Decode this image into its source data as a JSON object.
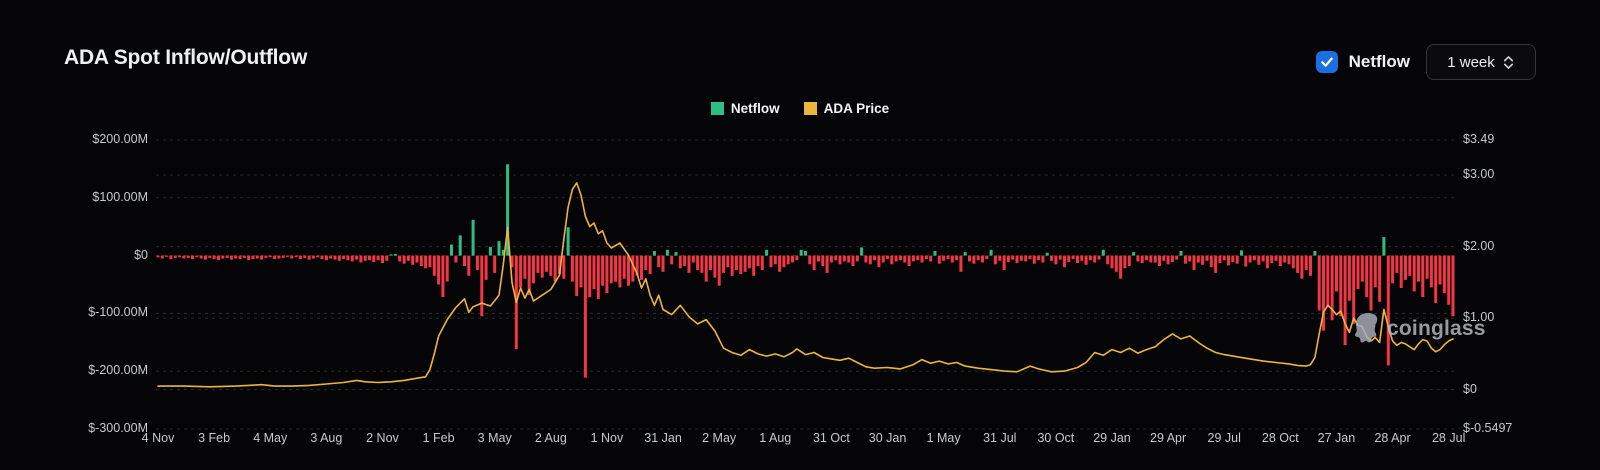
{
  "header": {
    "title": "ADA Spot Inflow/Outflow"
  },
  "controls": {
    "netflow_label": "Netflow",
    "netflow_checked": true,
    "checkbox_color": "#1c6fe2",
    "interval_value": "1 week"
  },
  "legend": [
    {
      "label": "Netflow",
      "color": "#2ebd85"
    },
    {
      "label": "ADA Price",
      "color": "#ecb53c"
    }
  ],
  "watermark": {
    "text": "coinglass"
  },
  "chart_data": {
    "type": "bar+line combo",
    "title": "ADA Spot Inflow/Outflow",
    "grid": "dashed horizontal gridlines, dark theme",
    "x_axis": {
      "tick_labels": [
        "4 Nov",
        "3 Feb",
        "4 May",
        "3 Aug",
        "2 Nov",
        "1 Feb",
        "3 May",
        "2 Aug",
        "1 Nov",
        "31 Jan",
        "2 May",
        "1 Aug",
        "31 Oct",
        "30 Jan",
        "1 May",
        "31 Jul",
        "30 Oct",
        "29 Jan",
        "29 Apr",
        "29 Jul",
        "28 Oct",
        "27 Jan",
        "28 Apr",
        "28 Jul"
      ],
      "weeks_between_ticks": 13,
      "total_weeks": 301
    },
    "left_axis": {
      "tick_labels": [
        "$200.00M",
        "$100.00M",
        "$0",
        "$-100.00M",
        "$-200.00M",
        "$-300.00M"
      ],
      "tick_values": [
        200,
        100,
        0,
        -100,
        -200,
        -300
      ],
      "range": [
        -300,
        200
      ],
      "unit": "$M"
    },
    "right_axis": {
      "tick_labels": [
        "$3.49",
        "$3.00",
        "$2.00",
        "$1.00",
        "$0",
        "$-0.5497"
      ],
      "tick_values": [
        3.49,
        3,
        2,
        1,
        0,
        -0.5497
      ],
      "range": [
        -0.5497,
        3.49
      ],
      "unit": "$"
    },
    "series": [
      {
        "name": "Netflow",
        "type": "bar",
        "axis": "left",
        "unit": "million USD per week",
        "color_positive": "#2ebd85",
        "color_negative": "#f23645",
        "values": [
          -3,
          -5,
          -2,
          -6,
          -4,
          -3,
          -5,
          -4,
          -6,
          -3,
          -5,
          -7,
          -4,
          -6,
          -8,
          -5,
          -4,
          -7,
          -5,
          -6,
          -4,
          -8,
          -6,
          -5,
          -7,
          -4,
          -3,
          -6,
          -5,
          -4,
          -2,
          -5,
          -3,
          -6,
          -4,
          -7,
          -5,
          -3,
          -6,
          -8,
          -5,
          -7,
          -9,
          -6,
          -8,
          -10,
          -7,
          -12,
          -9,
          -8,
          -11,
          -8,
          -13,
          -9,
          2,
          3,
          -10,
          -14,
          -9,
          -16,
          -12,
          -18,
          -22,
          -20,
          -35,
          -50,
          -72,
          -45,
          19,
          -12,
          35,
          -18,
          -35,
          62,
          -25,
          -105,
          -42,
          15,
          -30,
          25,
          10,
          158,
          -20,
          -162,
          -55,
          -40,
          -68,
          -48,
          -30,
          -38,
          -28,
          -35,
          -45,
          -32,
          -40,
          49,
          -45,
          -70,
          -55,
          -211,
          -72,
          -58,
          -75,
          -52,
          -65,
          -48,
          -45,
          -55,
          -40,
          -52,
          -45,
          -35,
          -42,
          -25,
          -32,
          8,
          -20,
          -28,
          10,
          -15,
          6,
          -22,
          -18,
          -30,
          -12,
          -25,
          -30,
          -45,
          -25,
          -38,
          -52,
          -30,
          -20,
          -35,
          -25,
          -32,
          -28,
          -22,
          -35,
          -18,
          -25,
          10,
          -20,
          -15,
          -28,
          -20,
          -15,
          -12,
          -8,
          10,
          8,
          -15,
          -25,
          -10,
          -18,
          -30,
          -12,
          -8,
          -15,
          -10,
          -12,
          -18,
          -10,
          14,
          -12,
          -15,
          -8,
          -20,
          -12,
          -6,
          -15,
          -10,
          -8,
          -12,
          -18,
          -10,
          -8,
          -12,
          -6,
          -10,
          8,
          -14,
          -9,
          -6,
          -12,
          -8,
          -28,
          6,
          -10,
          -14,
          -8,
          -12,
          -6,
          10,
          -15,
          -9,
          -25,
          -11,
          -7,
          -13,
          -9,
          -10,
          -6,
          -14,
          -8,
          -12,
          5,
          -9,
          -15,
          -7,
          -20,
          -11,
          -6,
          -13,
          -9,
          -16,
          -8,
          -12,
          -7,
          10,
          -15,
          -22,
          -28,
          -40,
          -22,
          -18,
          6,
          -10,
          -13,
          -8,
          -12,
          -12,
          -18,
          -9,
          -15,
          -11,
          -7,
          8,
          -14,
          -10,
          -25,
          -12,
          -16,
          -9,
          -20,
          -30,
          -13,
          -8,
          -17,
          -11,
          -14,
          9,
          -19,
          -12,
          -8,
          -16,
          -10,
          -22,
          -13,
          -9,
          -18,
          -12,
          -15,
          -22,
          -30,
          -40,
          -25,
          -35,
          8,
          -95,
          -130,
          -88,
          -112,
          -62,
          -105,
          -155,
          -78,
          -118,
          -58,
          -45,
          -72,
          -95,
          -55,
          -80,
          32,
          -190,
          -48,
          -30,
          -56,
          -42,
          -35,
          -62,
          -45,
          -72,
          -40,
          -55,
          -82,
          -50,
          -65,
          -85,
          -105
        ]
      },
      {
        "name": "ADA Price",
        "type": "line",
        "axis": "right",
        "unit": "USD",
        "color": "#ecb53c",
        "points": [
          [
            0,
            0.05
          ],
          [
            6,
            0.05
          ],
          [
            12,
            0.04
          ],
          [
            18,
            0.05
          ],
          [
            24,
            0.07
          ],
          [
            27,
            0.05
          ],
          [
            31,
            0.05
          ],
          [
            35,
            0.06
          ],
          [
            39,
            0.08
          ],
          [
            43,
            0.1
          ],
          [
            46,
            0.13
          ],
          [
            48,
            0.11
          ],
          [
            51,
            0.1
          ],
          [
            54,
            0.11
          ],
          [
            57,
            0.13
          ],
          [
            60,
            0.16
          ],
          [
            62,
            0.18
          ],
          [
            63,
            0.28
          ],
          [
            64,
            0.5
          ],
          [
            65,
            0.75
          ],
          [
            67,
            0.98
          ],
          [
            69,
            1.15
          ],
          [
            71,
            1.27
          ],
          [
            72,
            1.08
          ],
          [
            73,
            1.16
          ],
          [
            75,
            1.21
          ],
          [
            77,
            1.17
          ],
          [
            79,
            1.32
          ],
          [
            80,
            1.75
          ],
          [
            81,
            2.27
          ],
          [
            82,
            1.5
          ],
          [
            83,
            1.22
          ],
          [
            84,
            1.42
          ],
          [
            85,
            1.28
          ],
          [
            86,
            1.4
          ],
          [
            87,
            1.24
          ],
          [
            89,
            1.32
          ],
          [
            91,
            1.4
          ],
          [
            93,
            1.6
          ],
          [
            94,
            2.1
          ],
          [
            95,
            2.55
          ],
          [
            96,
            2.8
          ],
          [
            97,
            2.89
          ],
          [
            98,
            2.72
          ],
          [
            99,
            2.42
          ],
          [
            100,
            2.28
          ],
          [
            101,
            2.33
          ],
          [
            102,
            2.18
          ],
          [
            103,
            2.22
          ],
          [
            104,
            2.05
          ],
          [
            105,
            1.98
          ],
          [
            107,
            2.05
          ],
          [
            109,
            1.88
          ],
          [
            111,
            1.62
          ],
          [
            112,
            1.42
          ],
          [
            113,
            1.55
          ],
          [
            114,
            1.32
          ],
          [
            115,
            1.18
          ],
          [
            116,
            1.32
          ],
          [
            117,
            1.12
          ],
          [
            119,
            1.05
          ],
          [
            121,
            1.18
          ],
          [
            123,
            1.02
          ],
          [
            125,
            0.92
          ],
          [
            127,
            0.98
          ],
          [
            129,
            0.82
          ],
          [
            131,
            0.58
          ],
          [
            133,
            0.52
          ],
          [
            135,
            0.48
          ],
          [
            137,
            0.56
          ],
          [
            139,
            0.5
          ],
          [
            141,
            0.47
          ],
          [
            143,
            0.5
          ],
          [
            145,
            0.46
          ],
          [
            147,
            0.52
          ],
          [
            148,
            0.57
          ],
          [
            150,
            0.49
          ],
          [
            152,
            0.52
          ],
          [
            154,
            0.45
          ],
          [
            156,
            0.43
          ],
          [
            158,
            0.41
          ],
          [
            160,
            0.44
          ],
          [
            162,
            0.38
          ],
          [
            164,
            0.32
          ],
          [
            166,
            0.3
          ],
          [
            169,
            0.31
          ],
          [
            172,
            0.29
          ],
          [
            175,
            0.35
          ],
          [
            177,
            0.42
          ],
          [
            179,
            0.37
          ],
          [
            181,
            0.4
          ],
          [
            183,
            0.36
          ],
          [
            185,
            0.38
          ],
          [
            187,
            0.33
          ],
          [
            190,
            0.3
          ],
          [
            193,
            0.28
          ],
          [
            196,
            0.26
          ],
          [
            199,
            0.25
          ],
          [
            202,
            0.33
          ],
          [
            204,
            0.29
          ],
          [
            207,
            0.25
          ],
          [
            210,
            0.26
          ],
          [
            213,
            0.31
          ],
          [
            215,
            0.38
          ],
          [
            217,
            0.52
          ],
          [
            219,
            0.48
          ],
          [
            221,
            0.56
          ],
          [
            223,
            0.52
          ],
          [
            225,
            0.58
          ],
          [
            227,
            0.51
          ],
          [
            229,
            0.56
          ],
          [
            231,
            0.6
          ],
          [
            233,
            0.7
          ],
          [
            235,
            0.78
          ],
          [
            237,
            0.71
          ],
          [
            239,
            0.75
          ],
          [
            241,
            0.66
          ],
          [
            243,
            0.58
          ],
          [
            245,
            0.52
          ],
          [
            247,
            0.49
          ],
          [
            250,
            0.46
          ],
          [
            253,
            0.43
          ],
          [
            256,
            0.4
          ],
          [
            259,
            0.38
          ],
          [
            262,
            0.36
          ],
          [
            264,
            0.34
          ],
          [
            266,
            0.33
          ],
          [
            267,
            0.35
          ],
          [
            268,
            0.45
          ],
          [
            269,
            0.78
          ],
          [
            270,
            1.08
          ],
          [
            271,
            1.18
          ],
          [
            272,
            1.12
          ],
          [
            273,
            1.05
          ],
          [
            274,
            1.1
          ],
          [
            275,
            0.92
          ],
          [
            276,
            0.8
          ],
          [
            277,
            1.0
          ],
          [
            278,
            0.9
          ],
          [
            279,
            0.88
          ],
          [
            280,
            0.74
          ],
          [
            281,
            0.68
          ],
          [
            282,
            0.73
          ],
          [
            283,
            0.66
          ],
          [
            284,
            1.12
          ],
          [
            285,
            0.88
          ],
          [
            286,
            0.68
          ],
          [
            287,
            0.62
          ],
          [
            288,
            0.66
          ],
          [
            289,
            0.64
          ],
          [
            290,
            0.6
          ],
          [
            291,
            0.56
          ],
          [
            292,
            0.64
          ],
          [
            293,
            0.7
          ],
          [
            294,
            0.68
          ],
          [
            295,
            0.58
          ],
          [
            296,
            0.53
          ],
          [
            297,
            0.56
          ],
          [
            298,
            0.63
          ],
          [
            299,
            0.68
          ],
          [
            300,
            0.71
          ]
        ]
      }
    ]
  }
}
